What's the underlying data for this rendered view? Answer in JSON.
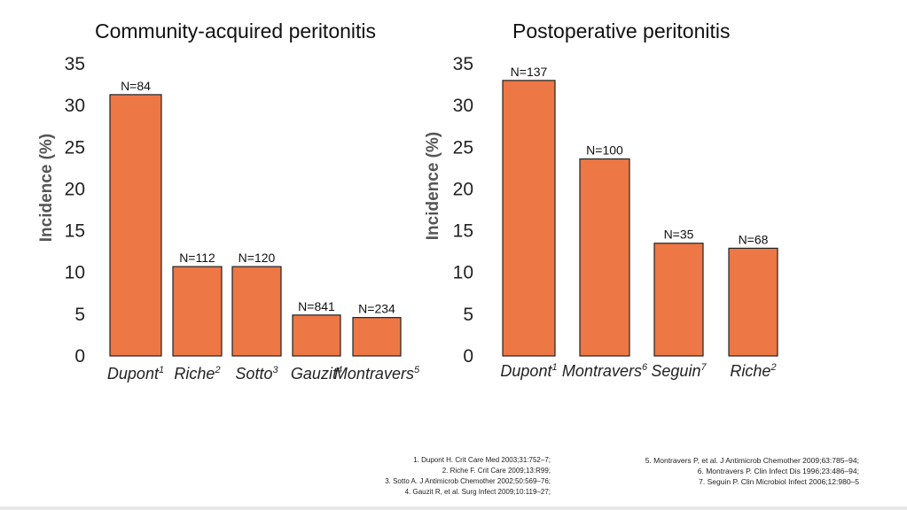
{
  "chart_data": [
    {
      "type": "bar",
      "title": "Community-acquired peritonitis",
      "ylabel": "Incidence (%)",
      "ylim": [
        0,
        35
      ],
      "yticks": [
        0,
        5,
        10,
        15,
        20,
        25,
        30,
        35
      ],
      "categories": [
        "Dupont",
        "Riche",
        "Sotto",
        "Gauzit",
        "Montravers"
      ],
      "category_refs": [
        "1",
        "2",
        "3",
        "4",
        "5"
      ],
      "values": [
        31.3,
        10.7,
        10.7,
        4.9,
        4.6
      ],
      "data_labels": [
        "N=84",
        "N=112",
        "N=120",
        "N=841",
        "N=234"
      ],
      "bar_color": "#ed7745"
    },
    {
      "type": "bar",
      "title": "Postoperative peritonitis",
      "ylabel": "Incidence (%)",
      "ylim": [
        0,
        35
      ],
      "yticks": [
        0,
        5,
        10,
        15,
        20,
        25,
        30,
        35
      ],
      "categories": [
        "Dupont",
        "Montravers",
        "Seguin",
        "Riche"
      ],
      "category_refs": [
        "1",
        "6",
        "7",
        "2"
      ],
      "values": [
        33.0,
        23.6,
        13.5,
        12.9
      ],
      "data_labels": [
        "N=137",
        "N=100",
        "N=35",
        "N=68"
      ],
      "bar_color": "#ed7745"
    }
  ],
  "references_left": [
    "1. Dupont H. Crit Care Med 2003;31:752–7;",
    "2. Riche F. Crit Care 2009;13:R99;",
    "3. Sotto A. J Antimicrob Chemother 2002;50:569–76;",
    "4. Gauzit R, et al. Surg Infect 2009;10:119–27;"
  ],
  "references_right": [
    "5. Montravers P, et al. J Antimicrob Chemother 2009;63:785–94;",
    "6. Montravers P. Clin Infect Dis 1996;23:486–94;",
    "7. Seguin P. Clin Microbiol Infect 2006;12:980–5"
  ]
}
